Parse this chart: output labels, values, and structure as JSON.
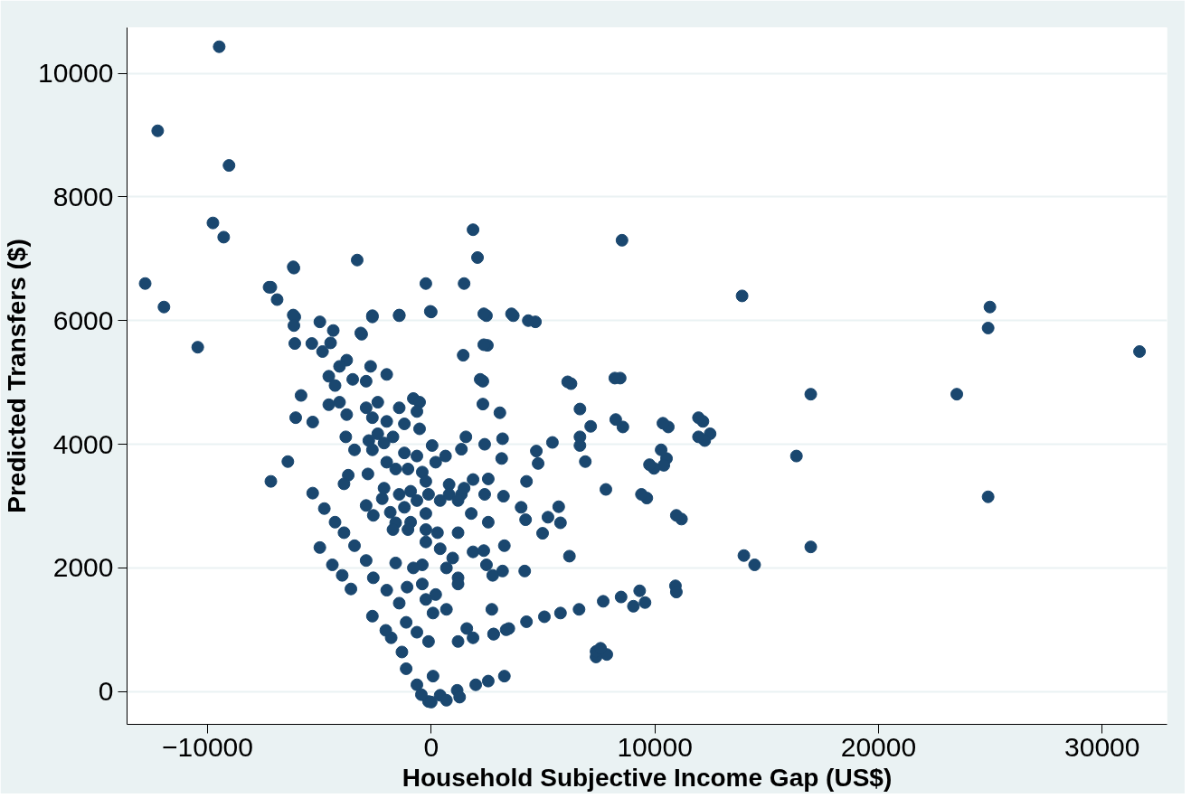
{
  "chart_data": {
    "type": "scatter",
    "xlabel": "Household Subjective Income Gap (US$)",
    "ylabel": "Predicted Transfers ($)",
    "xlim": [
      -13600,
      32900
    ],
    "ylim": [
      -530,
      10740
    ],
    "xticks": [
      -10000,
      0,
      10000,
      20000,
      30000
    ],
    "yticks": [
      0,
      2000,
      4000,
      6000,
      8000,
      10000
    ],
    "grid": "y",
    "marker": "circle",
    "series": [
      {
        "color": "#1a476f",
        "x": [
          -9480,
          -12230,
          -9040,
          -9760,
          -9280,
          -12790,
          -11950,
          -10440,
          -6140,
          -7250,
          -6890,
          -3310,
          -240,
          1870,
          2070,
          8530,
          13900,
          24980,
          24900,
          31670,
          23500,
          16970,
          16330,
          24900,
          16970,
          13980,
          14460,
          12150,
          12470,
          12230,
          10600,
          10520,
          10400,
          9960,
          9640,
          11190,
          10920,
          10960,
          9560,
          9040,
          7850,
          7370,
          8450,
          6250,
          4660,
          3670,
          2470,
          2510,
          2310,
          1470,
          0,
          -1430,
          -2630,
          -3110,
          -4500,
          -6100,
          -6100,
          -5340,
          -4860,
          -6170,
          -7170,
          -6170,
          -6140,
          -4980,
          -4380,
          -3150,
          -2630,
          -1430,
          -40,
          2350,
          3590,
          4340,
          2350,
          1430,
          2190,
          2310,
          3070,
          6100,
          8210,
          6650,
          7130,
          8250,
          8570,
          10360,
          11950,
          11950,
          6650,
          6650,
          6890,
          7810,
          9400,
          10280,
          9760,
          10960,
          5420,
          4700,
          4780,
          4260,
          5700,
          5780,
          5220,
          4980,
          4020,
          4220,
          6180,
          4180,
          3270,
          3190,
          2750,
          2470,
          2710,
          680,
          80,
          200,
          -400,
          -1080,
          -240,
          1870,
          2350,
          1790,
          2550,
          2390,
          3230,
          2550,
          1870,
          1350,
          1470,
          1350,
          1550,
          640,
          40,
          800,
          3190,
          3150,
          2390,
          9320,
          8490,
          7690,
          6610,
          5780,
          5060,
          4260,
          3470,
          2790,
          7370,
          7570,
          3270,
          2550,
          1990,
          1160,
          400,
          -120,
          -640,
          -1120,
          80,
          -1310,
          -1790,
          -2030,
          -2630,
          -120,
          -640,
          -1120,
          1200,
          1590,
          -1430,
          -1990,
          -2590,
          -2910,
          -3430,
          -3900,
          -4300,
          -4780,
          -5300,
          -3590,
          -3980,
          -4420,
          -4980,
          -7170,
          -6410,
          -6060,
          -5300,
          -5820,
          -4580,
          -4580,
          -3780,
          -4100,
          -2710,
          -1990,
          -3510,
          -2910,
          -4300,
          -4100,
          -3780,
          -2910,
          -2390,
          -1430,
          -800,
          -520,
          -640,
          -520,
          -1200,
          -1990,
          -2630,
          -2390,
          -2790,
          -3820,
          -3430,
          -2630,
          -2110,
          -1710,
          -1200,
          -640,
          -1990,
          -1590,
          -1040,
          -400,
          200,
          -3710,
          -2830,
          -3900,
          -2110,
          -2190,
          -1430,
          -920,
          -240,
          -120,
          -640,
          -1200,
          -2910,
          -2590,
          -1830,
          -1590,
          -920,
          -240,
          400,
          800,
          1200,
          -1710,
          -1040,
          -240,
          280,
          1200,
          -240,
          400,
          960,
          680,
          1200,
          1200,
          -400,
          -800,
          -1590,
          -440,
          0,
          680,
          1270,
          1870,
          2790,
          3350
        ],
        "values": [
          10430,
          9070,
          8510,
          7580,
          7350,
          6600,
          6220,
          5570,
          6850,
          6540,
          6340,
          6980,
          6600,
          7470,
          7020,
          7300,
          6400,
          6220,
          5880,
          5500,
          4810,
          4810,
          3810,
          3150,
          2340,
          2200,
          2050,
          4370,
          4170,
          4060,
          4280,
          3770,
          3660,
          3610,
          3130,
          2790,
          1710,
          1610,
          1440,
          1380,
          600,
          560,
          5070,
          4980,
          5980,
          6080,
          6080,
          5600,
          5020,
          6600,
          6140,
          6080,
          6080,
          5780,
          5640,
          6060,
          5630,
          5630,
          5500,
          6870,
          6540,
          6090,
          5920,
          5980,
          5840,
          5800,
          6060,
          6090,
          6150,
          6110,
          6110,
          6000,
          5610,
          5440,
          5050,
          4650,
          4510,
          5010,
          5070,
          4570,
          4290,
          4400,
          4280,
          4340,
          4430,
          4120,
          4120,
          3980,
          3720,
          3270,
          3190,
          3910,
          3670,
          2850,
          4030,
          3890,
          3690,
          3400,
          2990,
          2730,
          2820,
          2560,
          2980,
          2780,
          2190,
          1950,
          2360,
          1950,
          1880,
          2050,
          1330,
          1330,
          1270,
          1570,
          1740,
          1690,
          1490,
          2260,
          2280,
          2880,
          2740,
          3190,
          3160,
          3440,
          3430,
          3190,
          3290,
          3920,
          4120,
          3810,
          3980,
          3350,
          4090,
          3770,
          4000,
          1630,
          1530,
          1460,
          1330,
          1270,
          1210,
          1130,
          1020,
          930,
          650,
          700,
          250,
          170,
          110,
          20,
          -60,
          -160,
          110,
          370,
          250,
          640,
          870,
          990,
          1220,
          810,
          960,
          1120,
          810,
          1020,
          1430,
          1640,
          1840,
          2120,
          2360,
          2570,
          2740,
          2960,
          3210,
          1660,
          1880,
          2050,
          2330,
          3400,
          3720,
          4430,
          4360,
          4790,
          4640,
          5100,
          5360,
          5260,
          5260,
          5130,
          5050,
          5020,
          4950,
          4680,
          4480,
          4590,
          4680,
          4590,
          4740,
          4680,
          4530,
          4250,
          4330,
          4370,
          4430,
          4170,
          4060,
          4120,
          3910,
          3910,
          4020,
          4120,
          3860,
          3810,
          3710,
          3600,
          3600,
          3550,
          3710,
          3500,
          3520,
          3360,
          3290,
          3120,
          3190,
          3240,
          3400,
          3190,
          3090,
          2980,
          3010,
          2850,
          2900,
          2730,
          2740,
          2880,
          3090,
          3190,
          3090,
          2620,
          2620,
          2620,
          2570,
          2570,
          2420,
          2310,
          2160,
          2000,
          1840,
          1740,
          2050,
          2000,
          2080,
          -50,
          -170,
          -140,
          -90,
          870,
          930,
          1000
        ]
      }
    ]
  }
}
